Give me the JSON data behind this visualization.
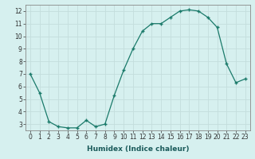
{
  "x": [
    0,
    1,
    2,
    3,
    4,
    5,
    6,
    7,
    8,
    9,
    10,
    11,
    12,
    13,
    14,
    15,
    16,
    17,
    18,
    19,
    20,
    21,
    22,
    23
  ],
  "y": [
    7.0,
    5.5,
    3.2,
    2.8,
    2.7,
    2.7,
    3.3,
    2.8,
    3.0,
    5.3,
    7.3,
    9.0,
    10.4,
    11.0,
    11.0,
    11.5,
    12.0,
    12.1,
    12.0,
    11.5,
    10.7,
    7.8,
    6.3,
    6.6
  ],
  "line_color": "#1a7a6a",
  "marker": "+",
  "marker_color": "#1a7a6a",
  "bg_color": "#d6f0ef",
  "grid_major_color": "#c4dedd",
  "grid_minor_color": "#daeeed",
  "xlabel": "Humidex (Indice chaleur)",
  "xlim": [
    -0.5,
    23.5
  ],
  "ylim": [
    2.5,
    12.5
  ],
  "yticks": [
    3,
    4,
    5,
    6,
    7,
    8,
    9,
    10,
    11,
    12
  ],
  "xticks": [
    0,
    1,
    2,
    3,
    4,
    5,
    6,
    7,
    8,
    9,
    10,
    11,
    12,
    13,
    14,
    15,
    16,
    17,
    18,
    19,
    20,
    21,
    22,
    23
  ],
  "xlabel_fontsize": 6.5,
  "tick_fontsize": 5.5,
  "line_width": 0.9,
  "marker_size": 3.5
}
